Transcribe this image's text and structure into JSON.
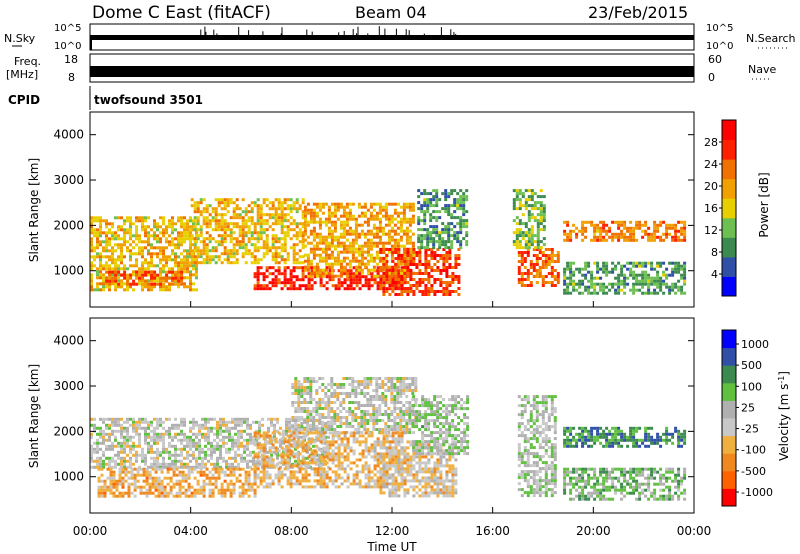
{
  "header": {
    "title": "Dome C East (fitACF)",
    "beam": "Beam 04",
    "date": "23/Feb/2015"
  },
  "status_panels": {
    "nsky": {
      "label": "N.Sky",
      "left_ticks": [
        "10^5",
        "10^0"
      ],
      "right_label": "N.Search",
      "right_ticks": [
        "10^5",
        "10^0"
      ]
    },
    "freq": {
      "label_top": "Freq.",
      "label_bottom": "[MHz]",
      "left_ticks": [
        "18",
        "8"
      ],
      "right_label": "Nave",
      "right_ticks": [
        "60",
        "0"
      ]
    },
    "cpid": {
      "label": "CPID",
      "value": "twofsound 3501"
    }
  },
  "colors": {
    "power_scale": [
      "#0000ff",
      "#3050a8",
      "#3c8a50",
      "#6cbf50",
      "#e8d000",
      "#f0a000",
      "#f07000",
      "#ff2000",
      "#ff0000"
    ],
    "velocity_scale": [
      "#ff0000",
      "#ff6000",
      "#f08820",
      "#f0b040",
      "#c8c8c8",
      "#b0b0b0",
      "#60c040",
      "#3c8a50",
      "#3050a8",
      "#0000ff"
    ]
  },
  "chart_data": [
    {
      "type": "heatmap",
      "name": "power",
      "ylabel": "Slant Range [km]",
      "y_ticks": [
        "1000",
        "2000",
        "3000",
        "4000"
      ],
      "ylim": [
        200,
        4500
      ],
      "x_ticks": [
        "00:00",
        "04:00",
        "08:00",
        "12:00",
        "16:00",
        "20:00",
        "00:00"
      ],
      "xlim": [
        0,
        24
      ],
      "colorbar": {
        "label": "Power [dB]",
        "ticks": [
          "4",
          "8",
          "12",
          "16",
          "20",
          "24",
          "28"
        ],
        "range": [
          0,
          32
        ]
      },
      "regions": [
        {
          "t0": 0.0,
          "t1": 4.2,
          "r0": 600,
          "r1": 2200,
          "value": 18
        },
        {
          "t0": 0.6,
          "t1": 3.6,
          "r0": 700,
          "r1": 1000,
          "value": 24
        },
        {
          "t0": 4.0,
          "t1": 8.5,
          "r0": 1200,
          "r1": 2600,
          "value": 18
        },
        {
          "t0": 6.5,
          "t1": 12.5,
          "r0": 600,
          "r1": 1100,
          "value": 28
        },
        {
          "t0": 8.5,
          "t1": 12.8,
          "r0": 900,
          "r1": 2500,
          "value": 20
        },
        {
          "t0": 11.5,
          "t1": 14.7,
          "r0": 500,
          "r1": 1500,
          "value": 26
        },
        {
          "t0": 13.0,
          "t1": 15.0,
          "r0": 1500,
          "r1": 2800,
          "value": 10
        },
        {
          "t0": 17.0,
          "t1": 18.6,
          "r0": 700,
          "r1": 1500,
          "value": 24
        },
        {
          "t0": 16.8,
          "t1": 18.0,
          "r0": 1500,
          "r1": 2800,
          "value": 12
        },
        {
          "t0": 18.8,
          "t1": 23.6,
          "r0": 1700,
          "r1": 2100,
          "value": 22
        },
        {
          "t0": 18.8,
          "t1": 23.6,
          "r0": 500,
          "r1": 1200,
          "value": 10
        }
      ]
    },
    {
      "type": "heatmap",
      "name": "velocity",
      "ylabel": "Slant Range [km]",
      "y_ticks": [
        "1000",
        "2000",
        "3000",
        "4000"
      ],
      "ylim": [
        200,
        4500
      ],
      "x_ticks": [
        "00:00",
        "04:00",
        "08:00",
        "12:00",
        "16:00",
        "20:00",
        "00:00"
      ],
      "xlim": [
        0,
        24
      ],
      "xlabel": "Time UT",
      "colorbar": {
        "label": "Velocity [m s^-1]",
        "ticks": [
          "1000",
          "500",
          "100",
          "25",
          "-25",
          "-100",
          "-500",
          "-1000"
        ],
        "range": [
          -1200,
          1200
        ]
      },
      "regions": [
        {
          "t0": 0.0,
          "t1": 9.5,
          "r0": 1200,
          "r1": 2300,
          "value": 0
        },
        {
          "t0": 0.3,
          "t1": 6.5,
          "r0": 600,
          "r1": 1200,
          "value": -400
        },
        {
          "t0": 8.0,
          "t1": 13.0,
          "r0": 2000,
          "r1": 3200,
          "value": 0
        },
        {
          "t0": 6.5,
          "t1": 12.5,
          "r0": 800,
          "r1": 2000,
          "value": -300
        },
        {
          "t0": 11.5,
          "t1": 14.5,
          "r0": 600,
          "r1": 1800,
          "value": -200
        },
        {
          "t0": 12.8,
          "t1": 15.0,
          "r0": 1500,
          "r1": 2800,
          "value": 150
        },
        {
          "t0": 17.0,
          "t1": 18.5,
          "r0": 600,
          "r1": 2800,
          "value": 100
        },
        {
          "t0": 18.8,
          "t1": 23.6,
          "r0": 1700,
          "r1": 2100,
          "value": 600
        },
        {
          "t0": 18.8,
          "t1": 23.6,
          "r0": 500,
          "r1": 1200,
          "value": 300
        }
      ]
    }
  ]
}
